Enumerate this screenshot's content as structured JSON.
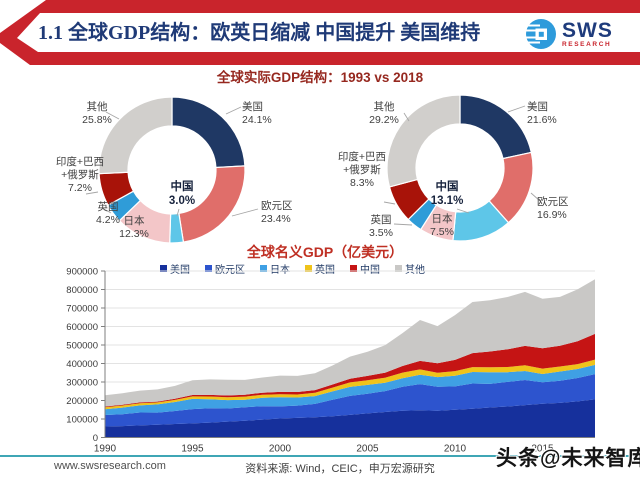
{
  "header": {
    "title": "1.1 全球GDP结构：欧英日缩减 中国提升 美国维持",
    "logo": {
      "brand": "SWS",
      "sub": "RESEARCH"
    },
    "accent_color": "#C9242C"
  },
  "section_title": "全球实际GDP结构：1993 vs 2018",
  "chart_data": [
    {
      "type": "pie",
      "title": "1993",
      "donut": true,
      "center_label": {
        "name": "中国",
        "value": "3.0%"
      },
      "slices": [
        {
          "name": "美国",
          "value": 24.1,
          "label": "24.1%",
          "color": "#1F3864"
        },
        {
          "name": "欧元区",
          "value": 23.4,
          "label": "23.4%",
          "color": "#E06E6A"
        },
        {
          "name": "中国",
          "value": 3.0,
          "label": "3.0%",
          "color": "#5EC6E8"
        },
        {
          "name": "日本",
          "value": 12.3,
          "label": "12.3%",
          "color": "#F3C6C8"
        },
        {
          "name": "英国",
          "value": 4.2,
          "label": "4.2%",
          "color": "#2F9CD8"
        },
        {
          "name": "印度+巴西+俄罗斯",
          "name_lines": [
            "印度+巴西",
            "+俄罗斯"
          ],
          "value": 7.2,
          "label": "7.2%",
          "color": "#A81309"
        },
        {
          "name": "其他",
          "value": 25.8,
          "label": "25.8%",
          "color": "#D1CFCC"
        }
      ]
    },
    {
      "type": "pie",
      "title": "2018",
      "donut": true,
      "center_label": {
        "name": "中国",
        "value": "13.1%"
      },
      "slices": [
        {
          "name": "美国",
          "value": 21.6,
          "label": "21.6%",
          "color": "#1F3864"
        },
        {
          "name": "欧元区",
          "value": 16.9,
          "label": "16.9%",
          "color": "#E06E6A"
        },
        {
          "name": "中国",
          "value": 13.1,
          "label": "13.1%",
          "color": "#5EC6E8"
        },
        {
          "name": "日本",
          "value": 7.5,
          "label": "7.5%",
          "color": "#F3C6C8"
        },
        {
          "name": "英国",
          "value": 3.5,
          "label": "3.5%",
          "color": "#2F9CD8"
        },
        {
          "name": "印度+巴西+俄罗斯",
          "name_lines": [
            "印度+巴西",
            "+俄罗斯"
          ],
          "value": 8.3,
          "label": "8.3%",
          "color": "#A81309"
        },
        {
          "name": "其他",
          "value": 29.2,
          "label": "29.2%",
          "color": "#D1CFCC"
        }
      ]
    },
    {
      "type": "area",
      "stacked": true,
      "title": "全球名义GDP（亿美元）",
      "ylim": [
        0,
        900000
      ],
      "yticks": [
        0,
        100000,
        200000,
        300000,
        400000,
        500000,
        600000,
        700000,
        800000,
        900000
      ],
      "xticks": [
        1990,
        1995,
        2000,
        2005,
        2010,
        2015
      ],
      "legend_position": "top",
      "x": [
        1990,
        1991,
        1992,
        1993,
        1994,
        1995,
        1996,
        1997,
        1998,
        1999,
        2000,
        2001,
        2002,
        2003,
        2004,
        2005,
        2006,
        2007,
        2008,
        2009,
        2010,
        2011,
        2012,
        2013,
        2014,
        2015,
        2016,
        2017,
        2018
      ],
      "series": [
        {
          "name": "美国",
          "color": "#16309C",
          "values": [
            59600,
            61600,
            65200,
            68600,
            73000,
            76400,
            80700,
            86000,
            91000,
            96600,
            102500,
            106000,
            109300,
            114600,
            122100,
            130400,
            138100,
            144500,
            147100,
            144500,
            149900,
            155400,
            162000,
            167800,
            175200,
            182100,
            187100,
            194900,
            205800
          ]
        },
        {
          "name": "欧元区",
          "color": "#2D54CE",
          "values": [
            62000,
            64500,
            70000,
            66000,
            70000,
            77000,
            77500,
            71000,
            73000,
            72500,
            65500,
            66500,
            72500,
            89500,
            102500,
            106500,
            112500,
            129500,
            141500,
            129500,
            126500,
            136500,
            127500,
            133000,
            135500,
            116500,
            119500,
            126500,
            137000
          ]
        },
        {
          "name": "日本",
          "color": "#3FA0E4",
          "values": [
            31300,
            35400,
            38500,
            44500,
            49000,
            55500,
            49000,
            44900,
            40500,
            45600,
            49700,
            43700,
            41800,
            45200,
            48900,
            47600,
            45300,
            45800,
            50400,
            52300,
            57600,
            62300,
            62700,
            52100,
            48900,
            44400,
            50000,
            48700,
            49700
          ]
        },
        {
          "name": "英国",
          "color": "#EFC31A",
          "values": [
            10900,
            11400,
            11800,
            10600,
            11400,
            13400,
            14200,
            15600,
            16500,
            16800,
            16600,
            16400,
            17800,
            20500,
            24200,
            25400,
            27100,
            31000,
            29300,
            24100,
            24800,
            26600,
            27100,
            28000,
            30600,
            29300,
            27000,
            26600,
            28600
          ]
        },
        {
          "name": "中国",
          "color": "#C51414",
          "values": [
            3600,
            3800,
            4200,
            4400,
            5600,
            7300,
            8600,
            9600,
            10300,
            10900,
            12100,
            13400,
            14700,
            16600,
            19600,
            22900,
            27500,
            35500,
            46000,
            51000,
            60900,
            75500,
            85300,
            95700,
            104800,
            110600,
            112300,
            123100,
            138900
          ]
        },
        {
          "name": "其他",
          "color": "#C9C8C6",
          "values": [
            61000,
            63000,
            64000,
            66000,
            70000,
            80000,
            84000,
            85000,
            80000,
            82000,
            88000,
            87000,
            91000,
            103000,
            120000,
            131000,
            148000,
            178000,
            221000,
            201000,
            242000,
            276000,
            277000,
            283000,
            292000,
            267000,
            264000,
            281000,
            295000
          ]
        }
      ]
    }
  ],
  "footer": {
    "url": "www.swsresearch.com",
    "source": "资料来源: Wind，CEIC，申万宏源研究"
  },
  "watermark": "头条@未来智库"
}
